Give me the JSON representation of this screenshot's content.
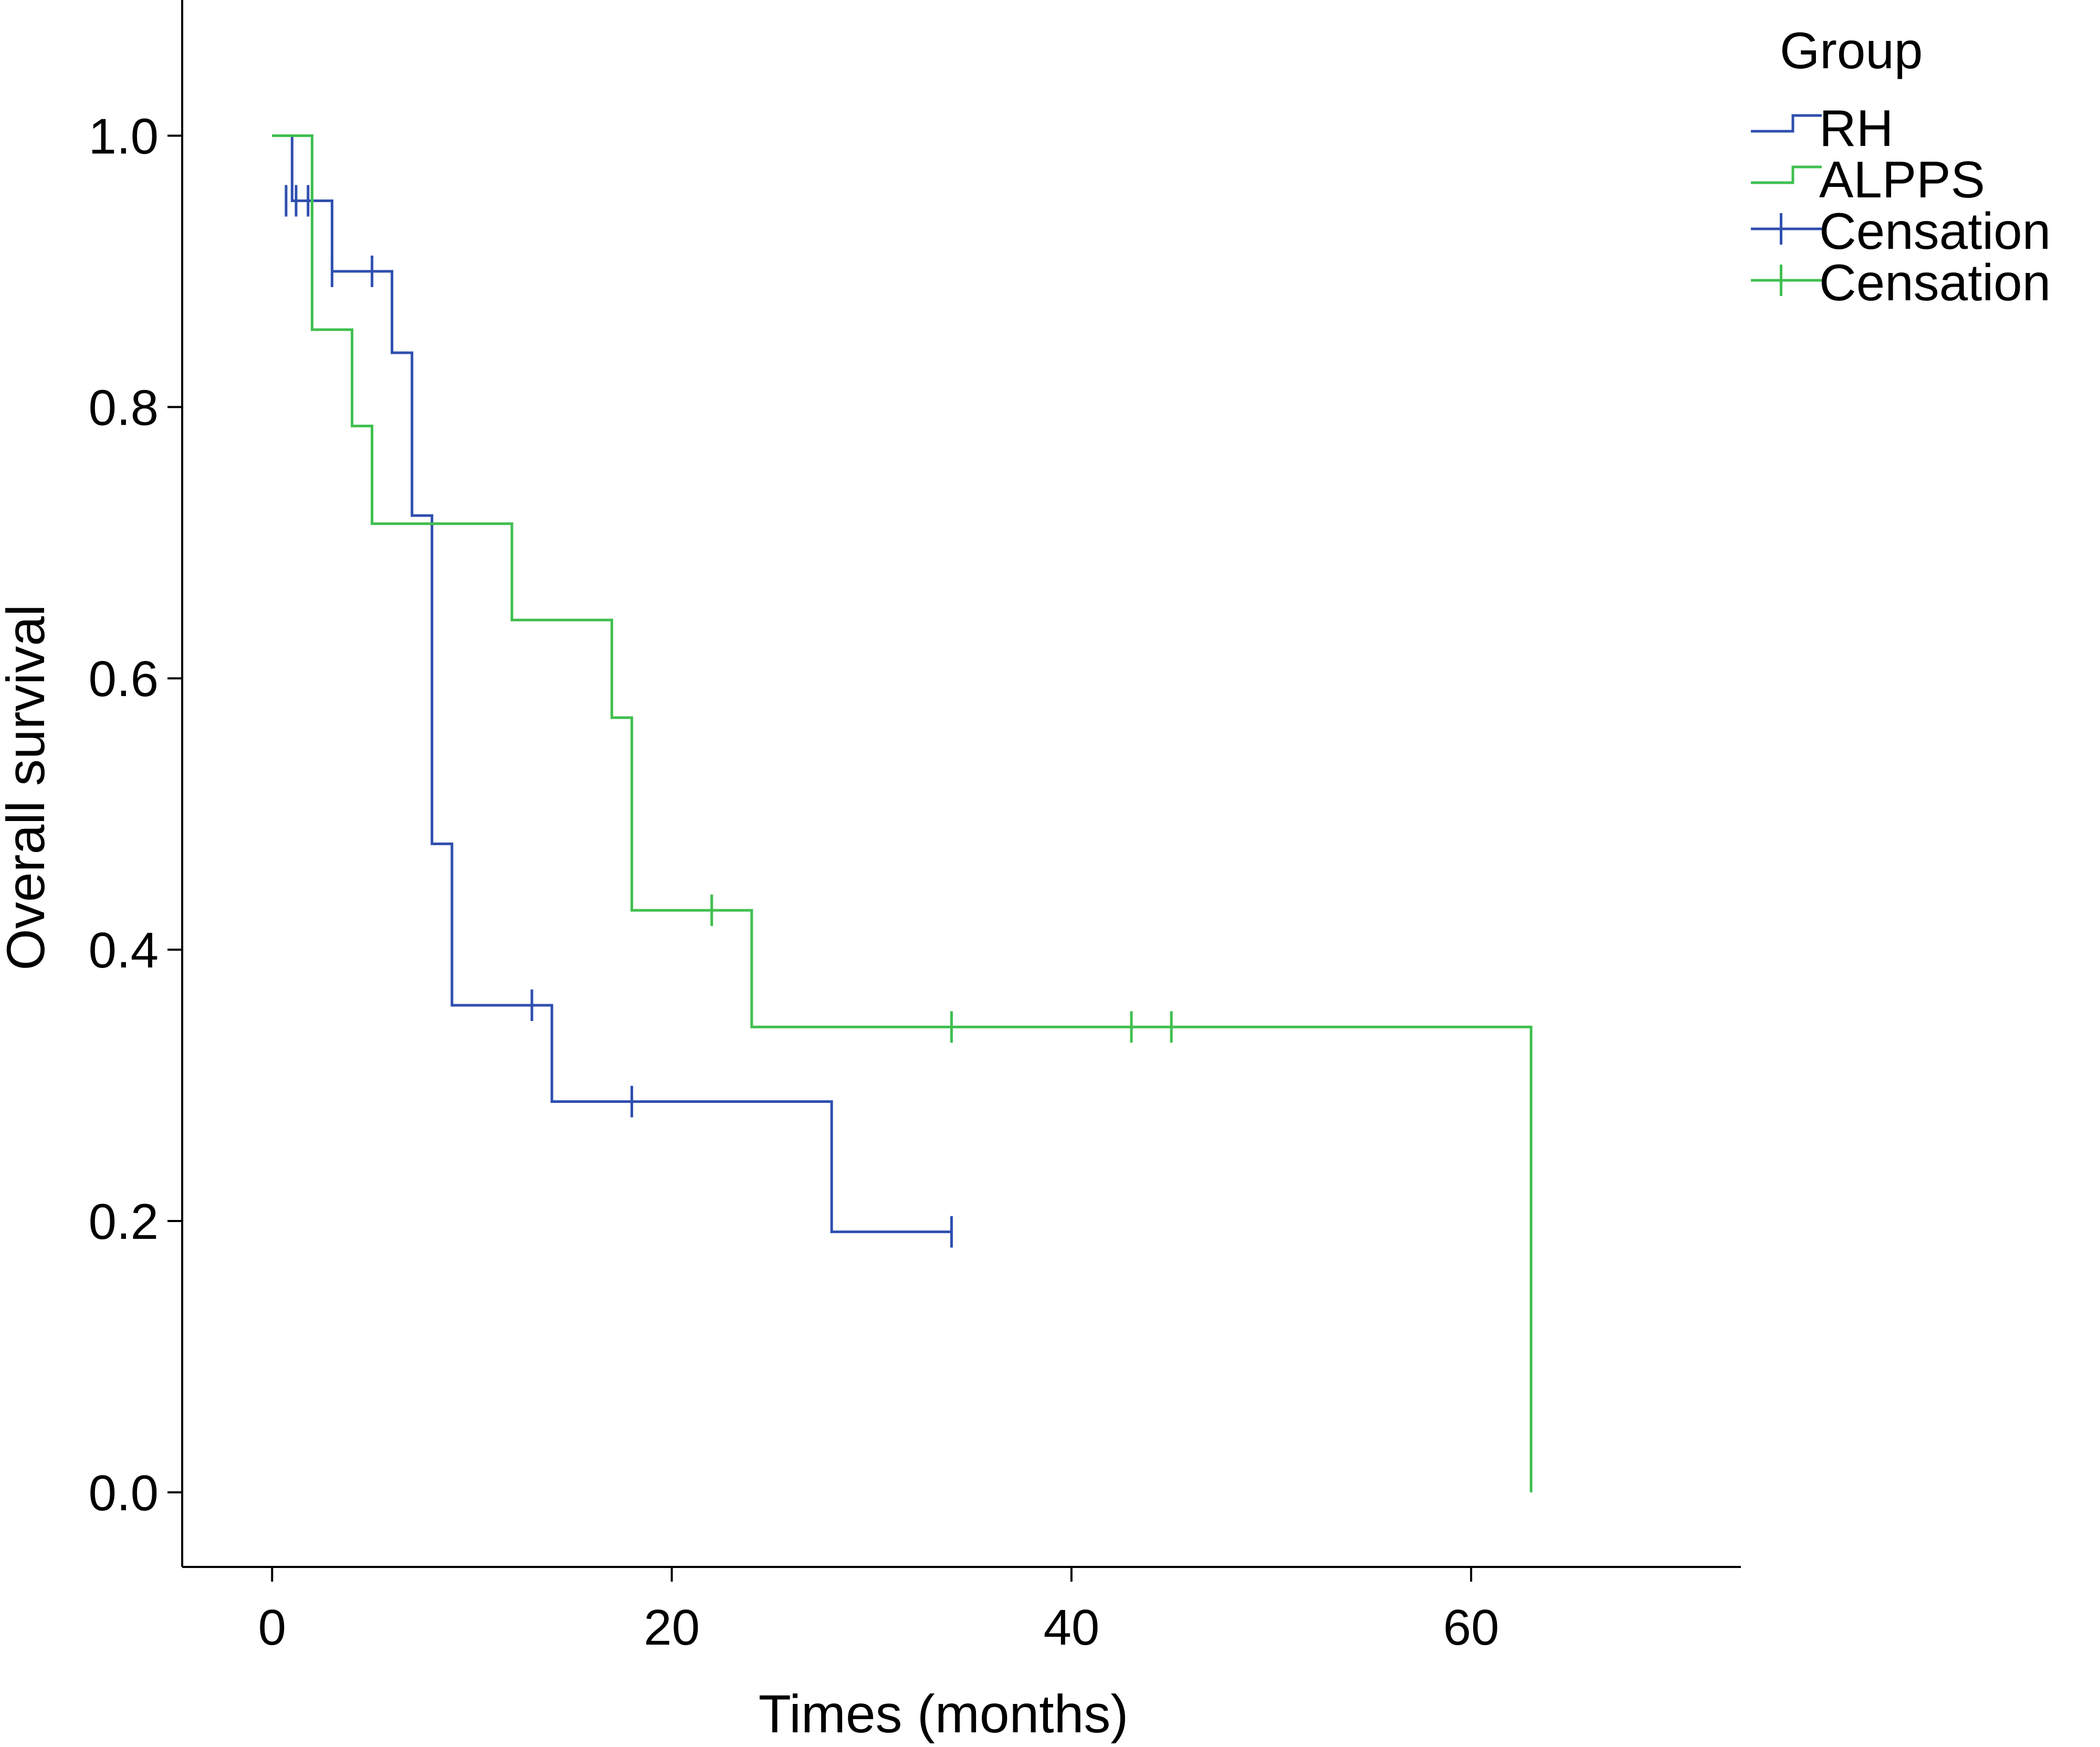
{
  "chart_data": {
    "type": "line",
    "xlabel": "Times (months)",
    "ylabel": "Overall survival",
    "xlim": [
      -4.5,
      73.5
    ],
    "ylim": [
      -0.055,
      1.1
    ],
    "xticks": [
      0,
      20,
      40,
      60
    ],
    "xtick_labels": [
      "0",
      "20",
      "40",
      "60"
    ],
    "yticks": [
      0.0,
      0.2,
      0.4,
      0.6,
      0.8,
      1.0
    ],
    "ytick_labels": [
      "0.0",
      "0.2",
      "0.4",
      "0.6",
      "0.8",
      "1.0"
    ],
    "grid": false,
    "legend": {
      "title": "Group",
      "position": "top-right",
      "entries": [
        {
          "label": "RH",
          "kind": "step",
          "color": "#2F4FAF"
        },
        {
          "label": "ALPPS",
          "kind": "step",
          "color": "#3FBF4F"
        },
        {
          "label": "Censation",
          "kind": "censor",
          "color": "#2F4FAF"
        },
        {
          "label": "Censation",
          "kind": "censor",
          "color": "#3FBF4F"
        }
      ]
    },
    "series": [
      {
        "name": "RH",
        "color": "#2F4FAF",
        "steps": [
          [
            0,
            1.0
          ],
          [
            1,
            0.952
          ],
          [
            3,
            0.9
          ],
          [
            6,
            0.84
          ],
          [
            7,
            0.72
          ],
          [
            8,
            0.478
          ],
          [
            9,
            0.359
          ],
          [
            14,
            0.288
          ],
          [
            28,
            0.192
          ],
          [
            34,
            0.192
          ]
        ],
        "censored": [
          [
            0.7,
            0.952
          ],
          [
            1.2,
            0.952
          ],
          [
            1.8,
            0.952
          ],
          [
            3.0,
            0.9
          ],
          [
            5.0,
            0.9
          ],
          [
            13.0,
            0.359
          ],
          [
            18.0,
            0.288
          ],
          [
            34.0,
            0.192
          ]
        ]
      },
      {
        "name": "ALPPS",
        "color": "#3FBF4F",
        "steps": [
          [
            0,
            1.0
          ],
          [
            2,
            0.857
          ],
          [
            4,
            0.786
          ],
          [
            5,
            0.714
          ],
          [
            12,
            0.643
          ],
          [
            17,
            0.571
          ],
          [
            18,
            0.429
          ],
          [
            24,
            0.343
          ],
          [
            63,
            0.343
          ],
          [
            63,
            0.0
          ]
        ],
        "censored": [
          [
            2.0,
            0.952
          ],
          [
            22.0,
            0.429
          ],
          [
            34.0,
            0.343
          ],
          [
            43.0,
            0.343
          ],
          [
            45.0,
            0.343
          ]
        ]
      }
    ]
  }
}
